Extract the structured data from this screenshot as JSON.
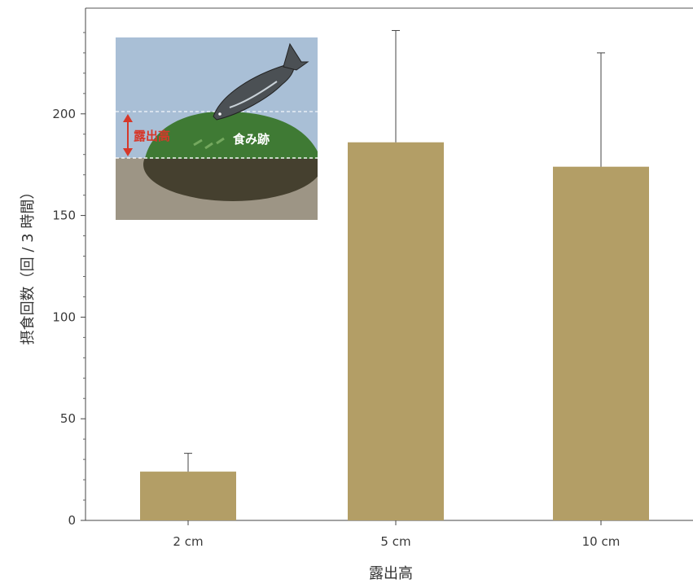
{
  "chart_data": {
    "type": "bar",
    "categories": [
      "2 cm",
      "5 cm",
      "10 cm"
    ],
    "values": [
      24,
      186,
      174
    ],
    "error_upper": [
      33,
      241,
      230
    ],
    "xlabel": "露出高",
    "ylabel": "摂食回数（回 / 3 時間）",
    "ylim": [
      0,
      252
    ],
    "yticks": [
      0,
      50,
      100,
      150,
      200
    ],
    "ytick_labels": [
      "0",
      "50",
      "100",
      "150",
      "200"
    ],
    "grid": false,
    "bar_color": "#b39e66"
  },
  "inset": {
    "label_exposure": "露出高",
    "label_feeding_marks": "食み跡"
  },
  "colors": {
    "water": "#a9bfd6",
    "sand": "#9d9585",
    "stone_dark": "#45402f",
    "algae": "#3f7a34",
    "arrow": "#d6382a",
    "fish": "#4b5054"
  }
}
